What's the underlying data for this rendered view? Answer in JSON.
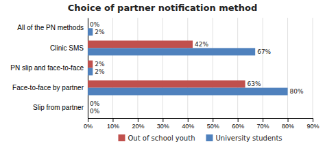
{
  "chart_data": {
    "type": "bar",
    "orientation": "horizontal",
    "title": "Choice of partner notification method",
    "categories": [
      "Slip from partner",
      "Face-to-face by partner",
      "PN slip and face-to-face",
      "Clinic SMS",
      "All of the PN methods"
    ],
    "series": [
      {
        "name": "Out of school youth",
        "color": "#c0504d",
        "values": [
          0,
          63,
          2,
          42,
          0
        ],
        "value_labels": [
          "0%",
          "63%",
          "2%",
          "42%",
          "0%"
        ]
      },
      {
        "name": "University students",
        "color": "#4f81bd",
        "values": [
          0,
          80,
          2,
          67,
          2
        ],
        "value_labels": [
          "0%",
          "80%",
          "2%",
          "67%",
          "2%"
        ]
      }
    ],
    "xlim": [
      0,
      90
    ],
    "xticks": [
      {
        "value": 0,
        "label": "0%"
      },
      {
        "value": 10,
        "label": "10%"
      },
      {
        "value": 20,
        "label": "20%"
      },
      {
        "value": 30,
        "label": "30%"
      },
      {
        "value": 40,
        "label": "40%"
      },
      {
        "value": 50,
        "label": "50%"
      },
      {
        "value": 60,
        "label": "60%"
      },
      {
        "value": 70,
        "label": "70%"
      },
      {
        "value": 80,
        "label": "80%"
      },
      {
        "value": 90,
        "label": "90%"
      }
    ],
    "grid": true,
    "data_labels": true,
    "legend": "bottom"
  }
}
